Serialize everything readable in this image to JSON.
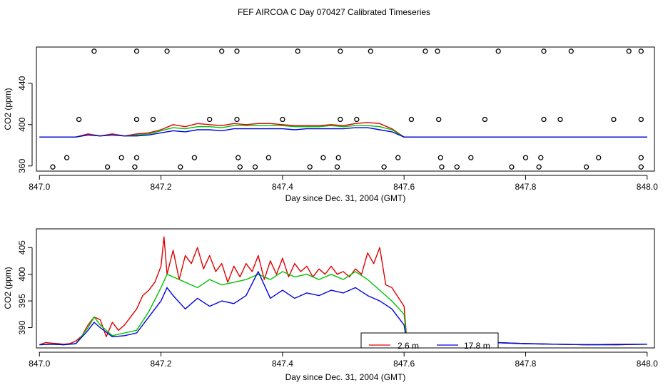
{
  "title": "FEF AIRCOA C  Day 070427  Calibrated Timeseries",
  "colors": {
    "s1": "#e00000",
    "s2": "#00c000",
    "s3": "#0000e0",
    "frame": "#000000"
  },
  "chart_data": [
    {
      "type": "line",
      "xlabel": "Day since Dec. 31, 2004 (GMT)",
      "ylabel": "CO2 (ppm)",
      "xlim": [
        846.995,
        848.012
      ],
      "ylim": [
        355,
        475
      ],
      "xticks": [
        847.0,
        847.2,
        847.4,
        847.6,
        847.8,
        848.0
      ],
      "xtick_labels": [
        "847.0",
        "847.2",
        "847.4",
        "847.6",
        "847.8",
        "848.0"
      ],
      "yticks": [
        360,
        400,
        440
      ],
      "ytick_labels": [
        "360",
        "400",
        "440"
      ],
      "series": [
        {
          "name": "2.6 m",
          "x": [
            847.0,
            847.02,
            847.04,
            847.06,
            847.08,
            847.1,
            847.12,
            847.14,
            847.16,
            847.18,
            847.2,
            847.22,
            847.24,
            847.26,
            847.28,
            847.3,
            847.32,
            847.34,
            847.36,
            847.38,
            847.4,
            847.42,
            847.44,
            847.46,
            847.48,
            847.5,
            847.52,
            847.54,
            847.56,
            847.58,
            847.6,
            847.62,
            847.7,
            847.8,
            847.9,
            848.0
          ],
          "y": [
            388,
            388,
            388,
            388,
            391,
            389,
            391,
            389,
            391,
            392,
            395,
            400,
            398,
            401,
            400,
            399,
            401,
            400,
            401,
            401,
            400,
            399,
            399,
            399,
            400,
            399,
            401,
            402,
            401,
            396,
            388,
            388,
            388,
            388,
            388,
            388
          ]
        },
        {
          "name": "",
          "x": [
            847.0,
            847.02,
            847.04,
            847.06,
            847.08,
            847.1,
            847.12,
            847.14,
            847.16,
            847.18,
            847.2,
            847.22,
            847.24,
            847.26,
            847.28,
            847.3,
            847.32,
            847.34,
            847.36,
            847.38,
            847.4,
            847.42,
            847.44,
            847.46,
            847.48,
            847.5,
            847.52,
            847.54,
            847.56,
            847.58,
            847.6,
            847.62,
            847.7,
            847.8,
            847.9,
            848.0
          ],
          "y": [
            388,
            388,
            388,
            388,
            390,
            389,
            390,
            389,
            390,
            391,
            394,
            397,
            396,
            398,
            398,
            397,
            399,
            399,
            399,
            399,
            399,
            398,
            398,
            398,
            399,
            398,
            399,
            399,
            398,
            395,
            388,
            388,
            388,
            388,
            388,
            388
          ]
        },
        {
          "name": "17.8 m",
          "x": [
            847.0,
            847.02,
            847.04,
            847.06,
            847.08,
            847.1,
            847.12,
            847.14,
            847.16,
            847.18,
            847.2,
            847.22,
            847.24,
            847.26,
            847.28,
            847.3,
            847.32,
            847.34,
            847.36,
            847.38,
            847.4,
            847.42,
            847.44,
            847.46,
            847.48,
            847.5,
            847.52,
            847.54,
            847.56,
            847.58,
            847.6,
            847.62,
            847.7,
            847.8,
            847.9,
            848.0
          ],
          "y": [
            388,
            388,
            388,
            388,
            390,
            389,
            390,
            389,
            389,
            390,
            392,
            394,
            393,
            395,
            395,
            394,
            396,
            396,
            396,
            396,
            396,
            395,
            396,
            396,
            396,
            396,
            397,
            397,
            395,
            393,
            388,
            388,
            388,
            388,
            388,
            388
          ]
        }
      ],
      "markers": {
        "label": "open circles",
        "x": [
          847.09,
          847.16,
          847.21,
          847.3,
          847.325,
          847.425,
          847.495,
          847.545,
          847.635,
          847.655,
          847.755,
          847.83,
          847.875,
          847.97,
          847.99,
          847.065,
          847.16,
          847.187,
          847.28,
          847.325,
          847.4,
          847.495,
          847.522,
          847.612,
          847.657,
          847.733,
          847.83,
          847.857,
          847.945,
          847.99,
          847.045,
          847.135,
          847.16,
          847.255,
          847.327,
          847.377,
          847.467,
          847.492,
          847.59,
          847.66,
          847.71,
          847.8,
          847.825,
          847.92,
          847.99,
          847.022,
          847.112,
          847.157,
          847.232,
          847.33,
          847.355,
          847.445,
          847.49,
          847.567,
          847.662,
          847.687,
          847.777,
          847.822,
          847.9,
          847.99
        ],
        "y": [
          471,
          471,
          471,
          471,
          471,
          471,
          471,
          471,
          471,
          471,
          471,
          471,
          471,
          471,
          471,
          405,
          405,
          405,
          405,
          405,
          405,
          405,
          405,
          405,
          405,
          405,
          405,
          405,
          405,
          405,
          368,
          368,
          368,
          368,
          368,
          368,
          368,
          368,
          368,
          368,
          368,
          368,
          368,
          368,
          368,
          359,
          359,
          359,
          359,
          359,
          359,
          359,
          359,
          359,
          359,
          359,
          359,
          359,
          359,
          359
        ]
      }
    },
    {
      "type": "line",
      "xlabel": "Day since Dec. 31, 2004 (GMT)",
      "ylabel": "CO2 (ppm)",
      "xlim": [
        846.995,
        848.012
      ],
      "ylim": [
        386.2,
        408.5
      ],
      "xticks": [
        847.0,
        847.2,
        847.4,
        847.6,
        847.8,
        848.0
      ],
      "xtick_labels": [
        "847.0",
        "847.2",
        "847.4",
        "847.6",
        "847.8",
        "848.0"
      ],
      "yticks": [
        390,
        395,
        400,
        405
      ],
      "ytick_labels": [
        "390",
        "395",
        "400",
        "405"
      ],
      "legend": {
        "position": "bottom-center",
        "entries": [
          "2.6 m",
          "17.8 m"
        ]
      },
      "series": [
        {
          "name": "2.6 m",
          "x": [
            847.0,
            847.01,
            847.02,
            847.03,
            847.04,
            847.05,
            847.06,
            847.07,
            847.08,
            847.09,
            847.1,
            847.11,
            847.12,
            847.13,
            847.14,
            847.15,
            847.16,
            847.17,
            847.18,
            847.19,
            847.2,
            847.205,
            847.21,
            847.22,
            847.23,
            847.24,
            847.25,
            847.26,
            847.27,
            847.28,
            847.29,
            847.3,
            847.31,
            847.32,
            847.33,
            847.34,
            847.35,
            847.36,
            847.37,
            847.38,
            847.39,
            847.4,
            847.41,
            847.42,
            847.43,
            847.44,
            847.45,
            847.46,
            847.47,
            847.48,
            847.49,
            847.5,
            847.51,
            847.52,
            847.53,
            847.54,
            847.55,
            847.56,
            847.57,
            847.58,
            847.6,
            847.605,
            847.62,
            847.65,
            847.7,
            847.75,
            847.8,
            847.85,
            847.9,
            847.95,
            848.0
          ],
          "y": [
            386.8,
            387.2,
            387.1,
            387.0,
            386.9,
            387.0,
            387.5,
            388.5,
            390.5,
            392.0,
            391.5,
            388.3,
            391.0,
            389.5,
            390.5,
            392.0,
            393.5,
            396.0,
            397.0,
            398.5,
            401.5,
            407.0,
            400.0,
            404.5,
            399.0,
            403.5,
            402.0,
            405.0,
            401.0,
            403.5,
            400.5,
            402.0,
            398.5,
            401.5,
            399.5,
            402.0,
            400.5,
            403.5,
            399.0,
            402.5,
            400.0,
            403.0,
            399.5,
            402.0,
            400.5,
            401.5,
            399.5,
            401.0,
            400.0,
            401.5,
            400.0,
            400.5,
            399.5,
            401.0,
            400.0,
            404.0,
            402.0,
            405.0,
            398.0,
            397.5,
            394.0,
            387.0,
            387.3,
            387.5,
            387.3,
            387.2,
            387.0,
            386.9,
            386.8,
            386.9,
            386.9
          ]
        },
        {
          "name": "",
          "x": [
            847.0,
            847.02,
            847.04,
            847.06,
            847.08,
            847.09,
            847.1,
            847.12,
            847.14,
            847.16,
            847.18,
            847.2,
            847.21,
            847.22,
            847.24,
            847.26,
            847.28,
            847.3,
            847.32,
            847.34,
            847.36,
            847.38,
            847.4,
            847.42,
            847.44,
            847.46,
            847.48,
            847.5,
            847.52,
            847.54,
            847.56,
            847.58,
            847.6,
            847.605,
            847.62,
            847.65,
            847.7,
            847.75,
            847.8,
            847.85,
            847.9,
            847.95,
            848.0
          ],
          "y": [
            386.8,
            386.9,
            386.8,
            387.0,
            390.0,
            392.0,
            390.5,
            388.5,
            389.0,
            389.5,
            393.0,
            397.5,
            400.0,
            399.5,
            398.5,
            397.5,
            399.0,
            398.0,
            398.5,
            399.0,
            400.0,
            399.0,
            400.5,
            399.5,
            400.0,
            399.0,
            400.0,
            399.0,
            400.5,
            399.0,
            397.0,
            395.0,
            392.5,
            387.0,
            387.2,
            387.3,
            387.6,
            387.2,
            387.0,
            386.9,
            386.8,
            386.8,
            386.9
          ]
        },
        {
          "name": "17.8 m",
          "x": [
            847.0,
            847.02,
            847.04,
            847.06,
            847.08,
            847.09,
            847.1,
            847.12,
            847.14,
            847.16,
            847.18,
            847.2,
            847.21,
            847.22,
            847.24,
            847.26,
            847.28,
            847.3,
            847.32,
            847.34,
            847.36,
            847.38,
            847.4,
            847.42,
            847.44,
            847.46,
            847.48,
            847.5,
            847.52,
            847.54,
            847.56,
            847.58,
            847.6,
            847.605,
            847.62,
            847.65,
            847.7,
            847.75,
            847.8,
            847.85,
            847.9,
            847.95,
            848.0
          ],
          "y": [
            386.8,
            386.9,
            386.8,
            387.0,
            389.5,
            391.0,
            390.0,
            388.3,
            388.5,
            389.0,
            392.0,
            395.0,
            397.5,
            396.0,
            393.5,
            395.5,
            394.0,
            395.0,
            394.5,
            396.0,
            400.5,
            395.5,
            397.0,
            395.5,
            396.5,
            396.0,
            397.0,
            396.5,
            397.5,
            396.0,
            395.0,
            393.5,
            390.5,
            387.0,
            387.2,
            387.4,
            387.5,
            387.2,
            387.0,
            386.9,
            386.8,
            386.8,
            386.9
          ]
        }
      ]
    }
  ]
}
